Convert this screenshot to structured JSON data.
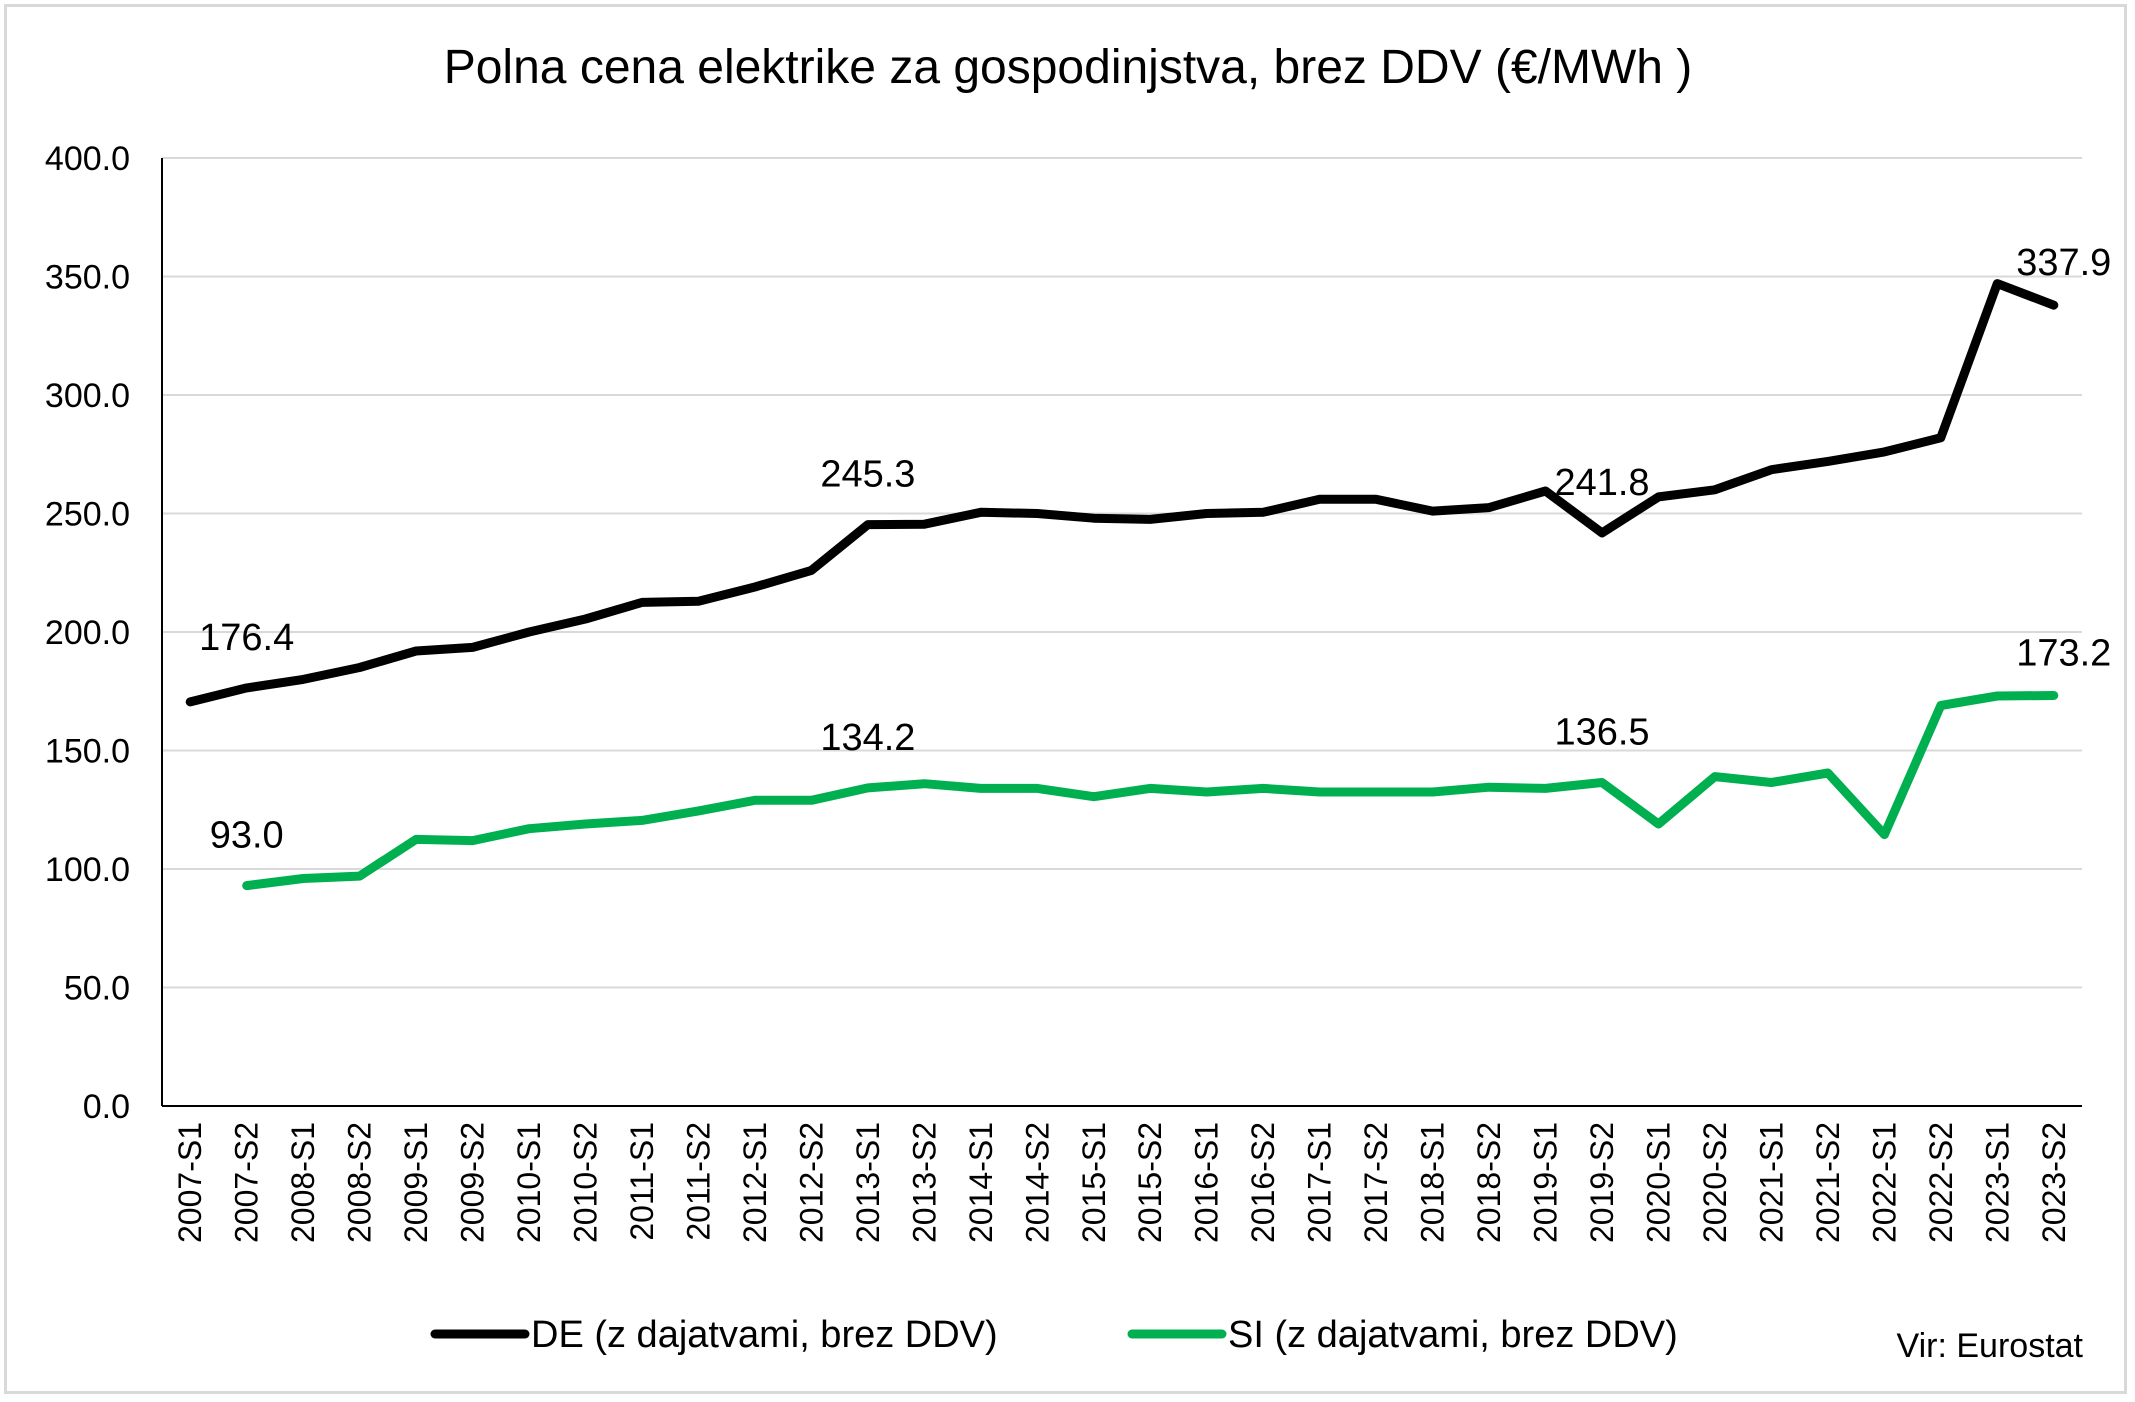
{
  "chart_data": {
    "type": "line",
    "title": "Polna cena elektrike za gospodinjstva, brez DDV (€/MWh )",
    "xlabel": "",
    "ylabel": "",
    "ylim": [
      0,
      400
    ],
    "yticks": [
      "0.0",
      "50.0",
      "100.0",
      "150.0",
      "200.0",
      "250.0",
      "300.0",
      "350.0",
      "400.0"
    ],
    "grid": true,
    "legend_position": "bottom",
    "categories": [
      "2007-S1",
      "2007-S2",
      "2008-S1",
      "2008-S2",
      "2009-S1",
      "2009-S2",
      "2010-S1",
      "2010-S2",
      "2011-S1",
      "2011-S2",
      "2012-S1",
      "2012-S2",
      "2013-S1",
      "2013-S2",
      "2014-S1",
      "2014-S2",
      "2015-S1",
      "2015-S2",
      "2016-S1",
      "2016-S2",
      "2017-S1",
      "2017-S2",
      "2018-S1",
      "2018-S2",
      "2019-S1",
      "2019-S2",
      "2020-S1",
      "2020-S2",
      "2021-S1",
      "2021-S2",
      "2022-S1",
      "2022-S2",
      "2023-S1",
      "2023-S2"
    ],
    "series": [
      {
        "name": "DE (z dajatvami, brez DDV)",
        "color": "#000000",
        "values": [
          170.5,
          176.4,
          180.0,
          185.0,
          192.0,
          193.5,
          200.0,
          205.5,
          212.5,
          213.0,
          219.0,
          226.0,
          245.3,
          245.5,
          250.5,
          250.0,
          248.0,
          247.5,
          250.0,
          250.5,
          256.0,
          256.0,
          251.0,
          252.5,
          259.5,
          241.8,
          257.0,
          260.0,
          268.5,
          272.0,
          276.0,
          282.0,
          347.0,
          337.9
        ]
      },
      {
        "name": "SI (z dajatvami, brez DDV)",
        "color": "#00b050",
        "values": [
          null,
          93.0,
          96.0,
          97.0,
          112.5,
          112.0,
          117.0,
          119.0,
          120.5,
          124.5,
          129.0,
          129.0,
          134.2,
          136.0,
          134.0,
          134.0,
          130.5,
          134.0,
          132.5,
          134.0,
          132.5,
          132.5,
          132.5,
          134.5,
          134.0,
          136.5,
          119.0,
          139.0,
          136.5,
          140.5,
          114.5,
          169.0,
          173.0,
          173.2
        ]
      }
    ],
    "data_labels": [
      {
        "series": 0,
        "index": 1,
        "text": "176.4"
      },
      {
        "series": 0,
        "index": 12,
        "text": "245.3"
      },
      {
        "series": 0,
        "index": 25,
        "text": "241.8"
      },
      {
        "series": 0,
        "index": 33,
        "text": "337.9"
      },
      {
        "series": 1,
        "index": 1,
        "text": "93.0"
      },
      {
        "series": 1,
        "index": 12,
        "text": "134.2"
      },
      {
        "series": 1,
        "index": 25,
        "text": "136.5"
      },
      {
        "series": 1,
        "index": 33,
        "text": "173.2"
      }
    ],
    "source_note": "Vir: Eurostat"
  }
}
